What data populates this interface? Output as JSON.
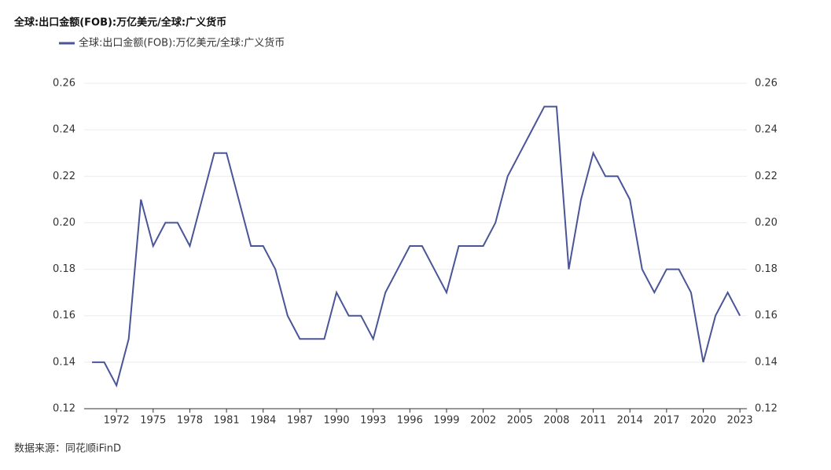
{
  "chart_data": {
    "type": "line",
    "title": "全球:出口金额(FOB):万亿美元/全球:广义货币",
    "source": "数据来源：同花顺iFinD",
    "x": [
      1970,
      1971,
      1972,
      1973,
      1974,
      1975,
      1976,
      1977,
      1978,
      1979,
      1980,
      1981,
      1982,
      1983,
      1984,
      1985,
      1986,
      1987,
      1988,
      1989,
      1990,
      1991,
      1992,
      1993,
      1994,
      1995,
      1996,
      1997,
      1998,
      1999,
      2000,
      2001,
      2002,
      2003,
      2004,
      2005,
      2006,
      2007,
      2008,
      2009,
      2010,
      2011,
      2012,
      2013,
      2014,
      2015,
      2016,
      2017,
      2018,
      2019,
      2020,
      2021,
      2022,
      2023
    ],
    "series": [
      {
        "name": "全球:出口金额(FOB):万亿美元/全球:广义货币",
        "color": "#4a5597",
        "values": [
          0.14,
          0.14,
          0.13,
          0.15,
          0.21,
          0.19,
          0.2,
          0.2,
          0.19,
          0.21,
          0.23,
          0.23,
          0.21,
          0.19,
          0.19,
          0.18,
          0.16,
          0.15,
          0.15,
          0.15,
          0.17,
          0.16,
          0.16,
          0.15,
          0.17,
          0.18,
          0.19,
          0.19,
          0.18,
          0.17,
          0.19,
          0.19,
          0.19,
          0.2,
          0.22,
          0.23,
          0.24,
          0.25,
          0.25,
          0.18,
          0.21,
          0.23,
          0.22,
          0.22,
          0.21,
          0.18,
          0.17,
          0.18,
          0.18,
          0.17,
          0.14,
          0.16,
          0.17,
          0.16
        ]
      }
    ],
    "xlim": [
      1969,
      2024
    ],
    "xticks": [
      1972,
      1975,
      1978,
      1981,
      1984,
      1987,
      1990,
      1993,
      1996,
      1999,
      2002,
      2005,
      2008,
      2011,
      2014,
      2017,
      2020,
      2023
    ],
    "ylim": [
      0.12,
      0.26
    ],
    "yticks": [
      0.12,
      0.14,
      0.16,
      0.18,
      {
        "value": 0.2,
        "label": "0.20"
      },
      0.22,
      0.24,
      0.26
    ],
    "y2lim": [
      0.12,
      0.26
    ],
    "y2ticks": [
      0.12,
      0.14,
      0.16,
      0.18,
      {
        "value": 0.2,
        "label": "0.20"
      },
      0.22,
      0.24,
      0.26
    ],
    "grid": true,
    "legend": "top-left"
  }
}
